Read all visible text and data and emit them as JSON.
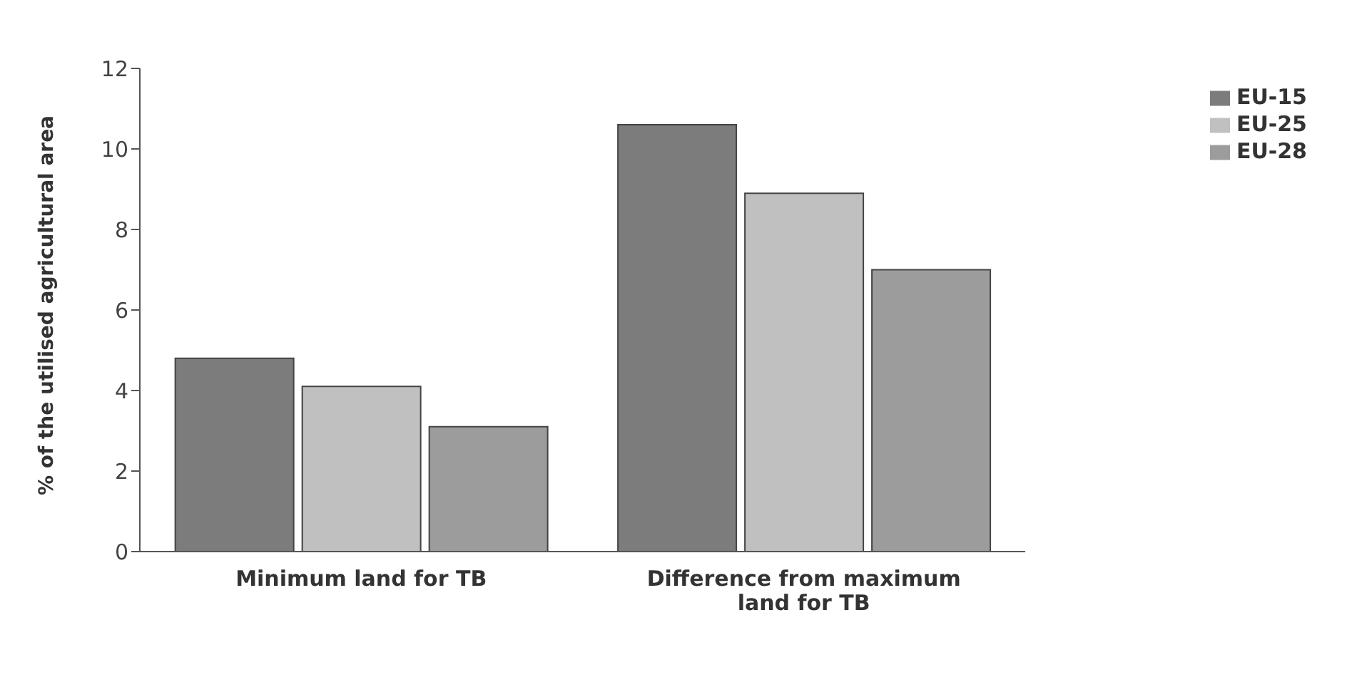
{
  "chart_data": {
    "type": "bar",
    "ylabel": "% of the utilised agricultural area",
    "categories": [
      "Minimum land for TB",
      "Difference from maximum land for TB"
    ],
    "series": [
      {
        "name": "EU-15",
        "color": "#7c7c7c",
        "values": [
          4.8,
          10.6
        ]
      },
      {
        "name": "EU-25",
        "color": "#c0c0c0",
        "values": [
          4.1,
          8.9
        ]
      },
      {
        "name": "EU-28",
        "color": "#9c9c9c",
        "values": [
          3.1,
          7.0
        ]
      }
    ],
    "ylim": [
      0,
      12
    ],
    "yticks": [
      0,
      2,
      4,
      6,
      8,
      10,
      12
    ],
    "grid": false,
    "legend": "top right"
  }
}
